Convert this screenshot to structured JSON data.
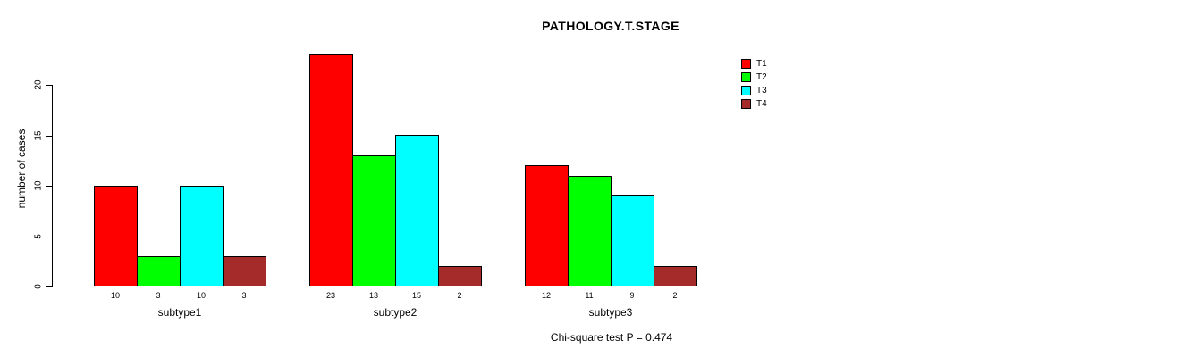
{
  "chart_data": {
    "type": "bar",
    "title": "PATHOLOGY.T.STAGE",
    "ylabel": "number of cases",
    "xlabel": "",
    "categories": [
      "subtype1",
      "subtype2",
      "subtype3"
    ],
    "series": [
      {
        "name": "T1",
        "color": "#FF0000",
        "values": [
          10,
          23,
          12
        ]
      },
      {
        "name": "T2",
        "color": "#00FF00",
        "values": [
          3,
          13,
          11
        ]
      },
      {
        "name": "T3",
        "color": "#00FFFF",
        "values": [
          10,
          15,
          9
        ]
      },
      {
        "name": "T4",
        "color": "#A52A2A",
        "values": [
          3,
          2,
          2
        ]
      }
    ],
    "bar_value_labels": [
      [
        10,
        3,
        10,
        3
      ],
      [
        23,
        13,
        15,
        2
      ],
      [
        12,
        11,
        9,
        2
      ]
    ],
    "yticks": [
      0,
      5,
      10,
      15,
      20
    ],
    "ylim": [
      0,
      23
    ],
    "grid": false,
    "legend_position": "top-right",
    "annotation": "Chi-square test P = 0.474"
  },
  "colors": {
    "background": "#FFFFFF",
    "axis": "#000000",
    "text": "#000000"
  }
}
